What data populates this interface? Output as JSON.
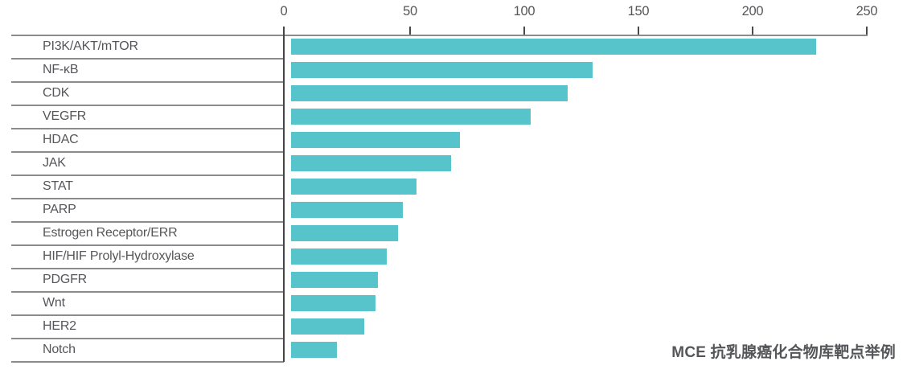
{
  "chart_data": {
    "type": "bar",
    "orientation": "horizontal",
    "title": "",
    "xlabel": "",
    "ylabel": "",
    "categories": [
      "PI3K/AKT/mTOR",
      "NF-κB",
      "CDK",
      "VEGFR",
      "HDAC",
      "JAK",
      "STAT",
      "PARP",
      "Estrogen Receptor/ERR",
      "HIF/HIF Prolyl-Hydroxylase",
      "PDGFR",
      "Wnt",
      "HER2",
      "Notch"
    ],
    "values": [
      230,
      132,
      121,
      105,
      74,
      70,
      55,
      49,
      47,
      42,
      38,
      37,
      32,
      20
    ],
    "x_axis": {
      "position": "top",
      "range": [
        0,
        250
      ],
      "ticks": [
        0,
        50,
        100,
        150,
        200,
        250
      ]
    },
    "legend": "none",
    "grid": "off",
    "bar_color": "#57c3cb",
    "caption": "MCE 抗乳腺癌化合物库靶点举例"
  },
  "colors": {
    "bar": "#57c3cb",
    "line_gray": "#8b8b8b",
    "tick_dark": "#4a4a4c",
    "text": "#55565a",
    "background": "#ffffff"
  }
}
